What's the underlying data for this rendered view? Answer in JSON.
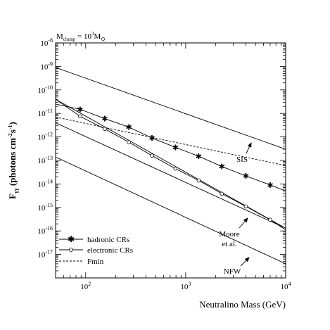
{
  "chart_data": {
    "type": "line",
    "title": "",
    "subtitle": "M_clump = 10^3 M_sun",
    "subtitle_parts": {
      "m": "M",
      "sub_clump": "clump",
      "eq": " = 10",
      "exp": "3",
      "m2": "M",
      "sun": "⊙"
    },
    "xlabel": "Neutralino Mass (GeV)",
    "ylabel": "F_γ (photons cm^-2 s^-1)",
    "ylabel_parts": {
      "f": "F",
      "sub": "γγ",
      "text1": " (photons cm",
      "exp1": "-2",
      "text2": "s",
      "exp2": "-1",
      "text3": ")"
    },
    "x_scale": "log",
    "y_scale": "log",
    "xlim": [
      50,
      10000
    ],
    "ylim": [
      1e-18,
      1e-08
    ],
    "x_ticks": [
      {
        "base": "10",
        "exp": "2"
      },
      {
        "base": "10",
        "exp": "3"
      },
      {
        "base": "10",
        "exp": "4"
      }
    ],
    "y_ticks": [
      {
        "base": "10",
        "exp": "-8"
      },
      {
        "base": "10",
        "exp": "-9"
      },
      {
        "base": "10",
        "exp": "-10"
      },
      {
        "base": "10",
        "exp": "-11"
      },
      {
        "base": "10",
        "exp": "-12"
      },
      {
        "base": "10",
        "exp": "-13"
      },
      {
        "base": "10",
        "exp": "-14"
      },
      {
        "base": "10",
        "exp": "-15"
      },
      {
        "base": "10",
        "exp": "-16"
      },
      {
        "base": "10",
        "exp": "-17"
      }
    ],
    "grid": false,
    "legend_position": "bottom-left",
    "legend": [
      {
        "label": "hadronic CRs",
        "marker": "asterisk",
        "style": "solid"
      },
      {
        "label": "electronic CRs",
        "marker": "open-circle",
        "style": "solid"
      },
      {
        "label": "Fmin",
        "marker": "none",
        "style": "dashed"
      }
    ],
    "series": [
      {
        "style": "solid",
        "marker": "none",
        "x": [
          50,
          10000
        ],
        "y": [
          9e-10,
          3e-13
        ]
      },
      {
        "style": "solid",
        "marker": "none",
        "x": [
          50,
          10000
        ],
        "y": [
          4e-11,
          1.3e-16
        ]
      },
      {
        "style": "solid",
        "marker": "none",
        "x": [
          50,
          10000
        ],
        "y": [
          4e-12,
          1.3e-16
        ]
      },
      {
        "style": "solid",
        "marker": "none",
        "x": [
          50,
          10000
        ],
        "y": [
          1.4e-13,
          4e-18
        ]
      },
      {
        "style": "dashed",
        "marker": "none",
        "x": [
          50,
          10000
        ],
        "y": [
          7e-12,
          6e-14
        ]
      },
      {
        "style": "solid",
        "marker": "asterisk",
        "x": [
          50,
          88,
          155,
          270,
          460,
          790,
          1350,
          2300,
          4000,
          7000,
          10000
        ],
        "y": [
          2.5e-11,
          1.5e-11,
          6e-12,
          2.6e-12,
          9e-13,
          3.6e-13,
          1.5e-13,
          5.5e-14,
          2.2e-14,
          9e-15,
          5e-15
        ]
      },
      {
        "style": "solid",
        "marker": "open-circle",
        "x": [
          50,
          88,
          155,
          270,
          460,
          790,
          1350,
          2300,
          4000,
          7000,
          10000
        ],
        "y": [
          4e-11,
          7.5e-12,
          2.2e-12,
          6e-13,
          1.6e-13,
          4.5e-14,
          1.4e-14,
          3.8e-15,
          1.1e-15,
          3e-16,
          1.1e-16
        ]
      }
    ],
    "annotations": [
      {
        "text": "SIS",
        "target": {
          "x": 3000,
          "y": 1e-12
        }
      },
      {
        "text": "Moore",
        "text2": "et al.",
        "target": {
          "x": 3000,
          "y": 3.5e-15
        }
      },
      {
        "text": "NFW",
        "target": {
          "x": 3000,
          "y": 2.5e-17
        }
      }
    ]
  }
}
